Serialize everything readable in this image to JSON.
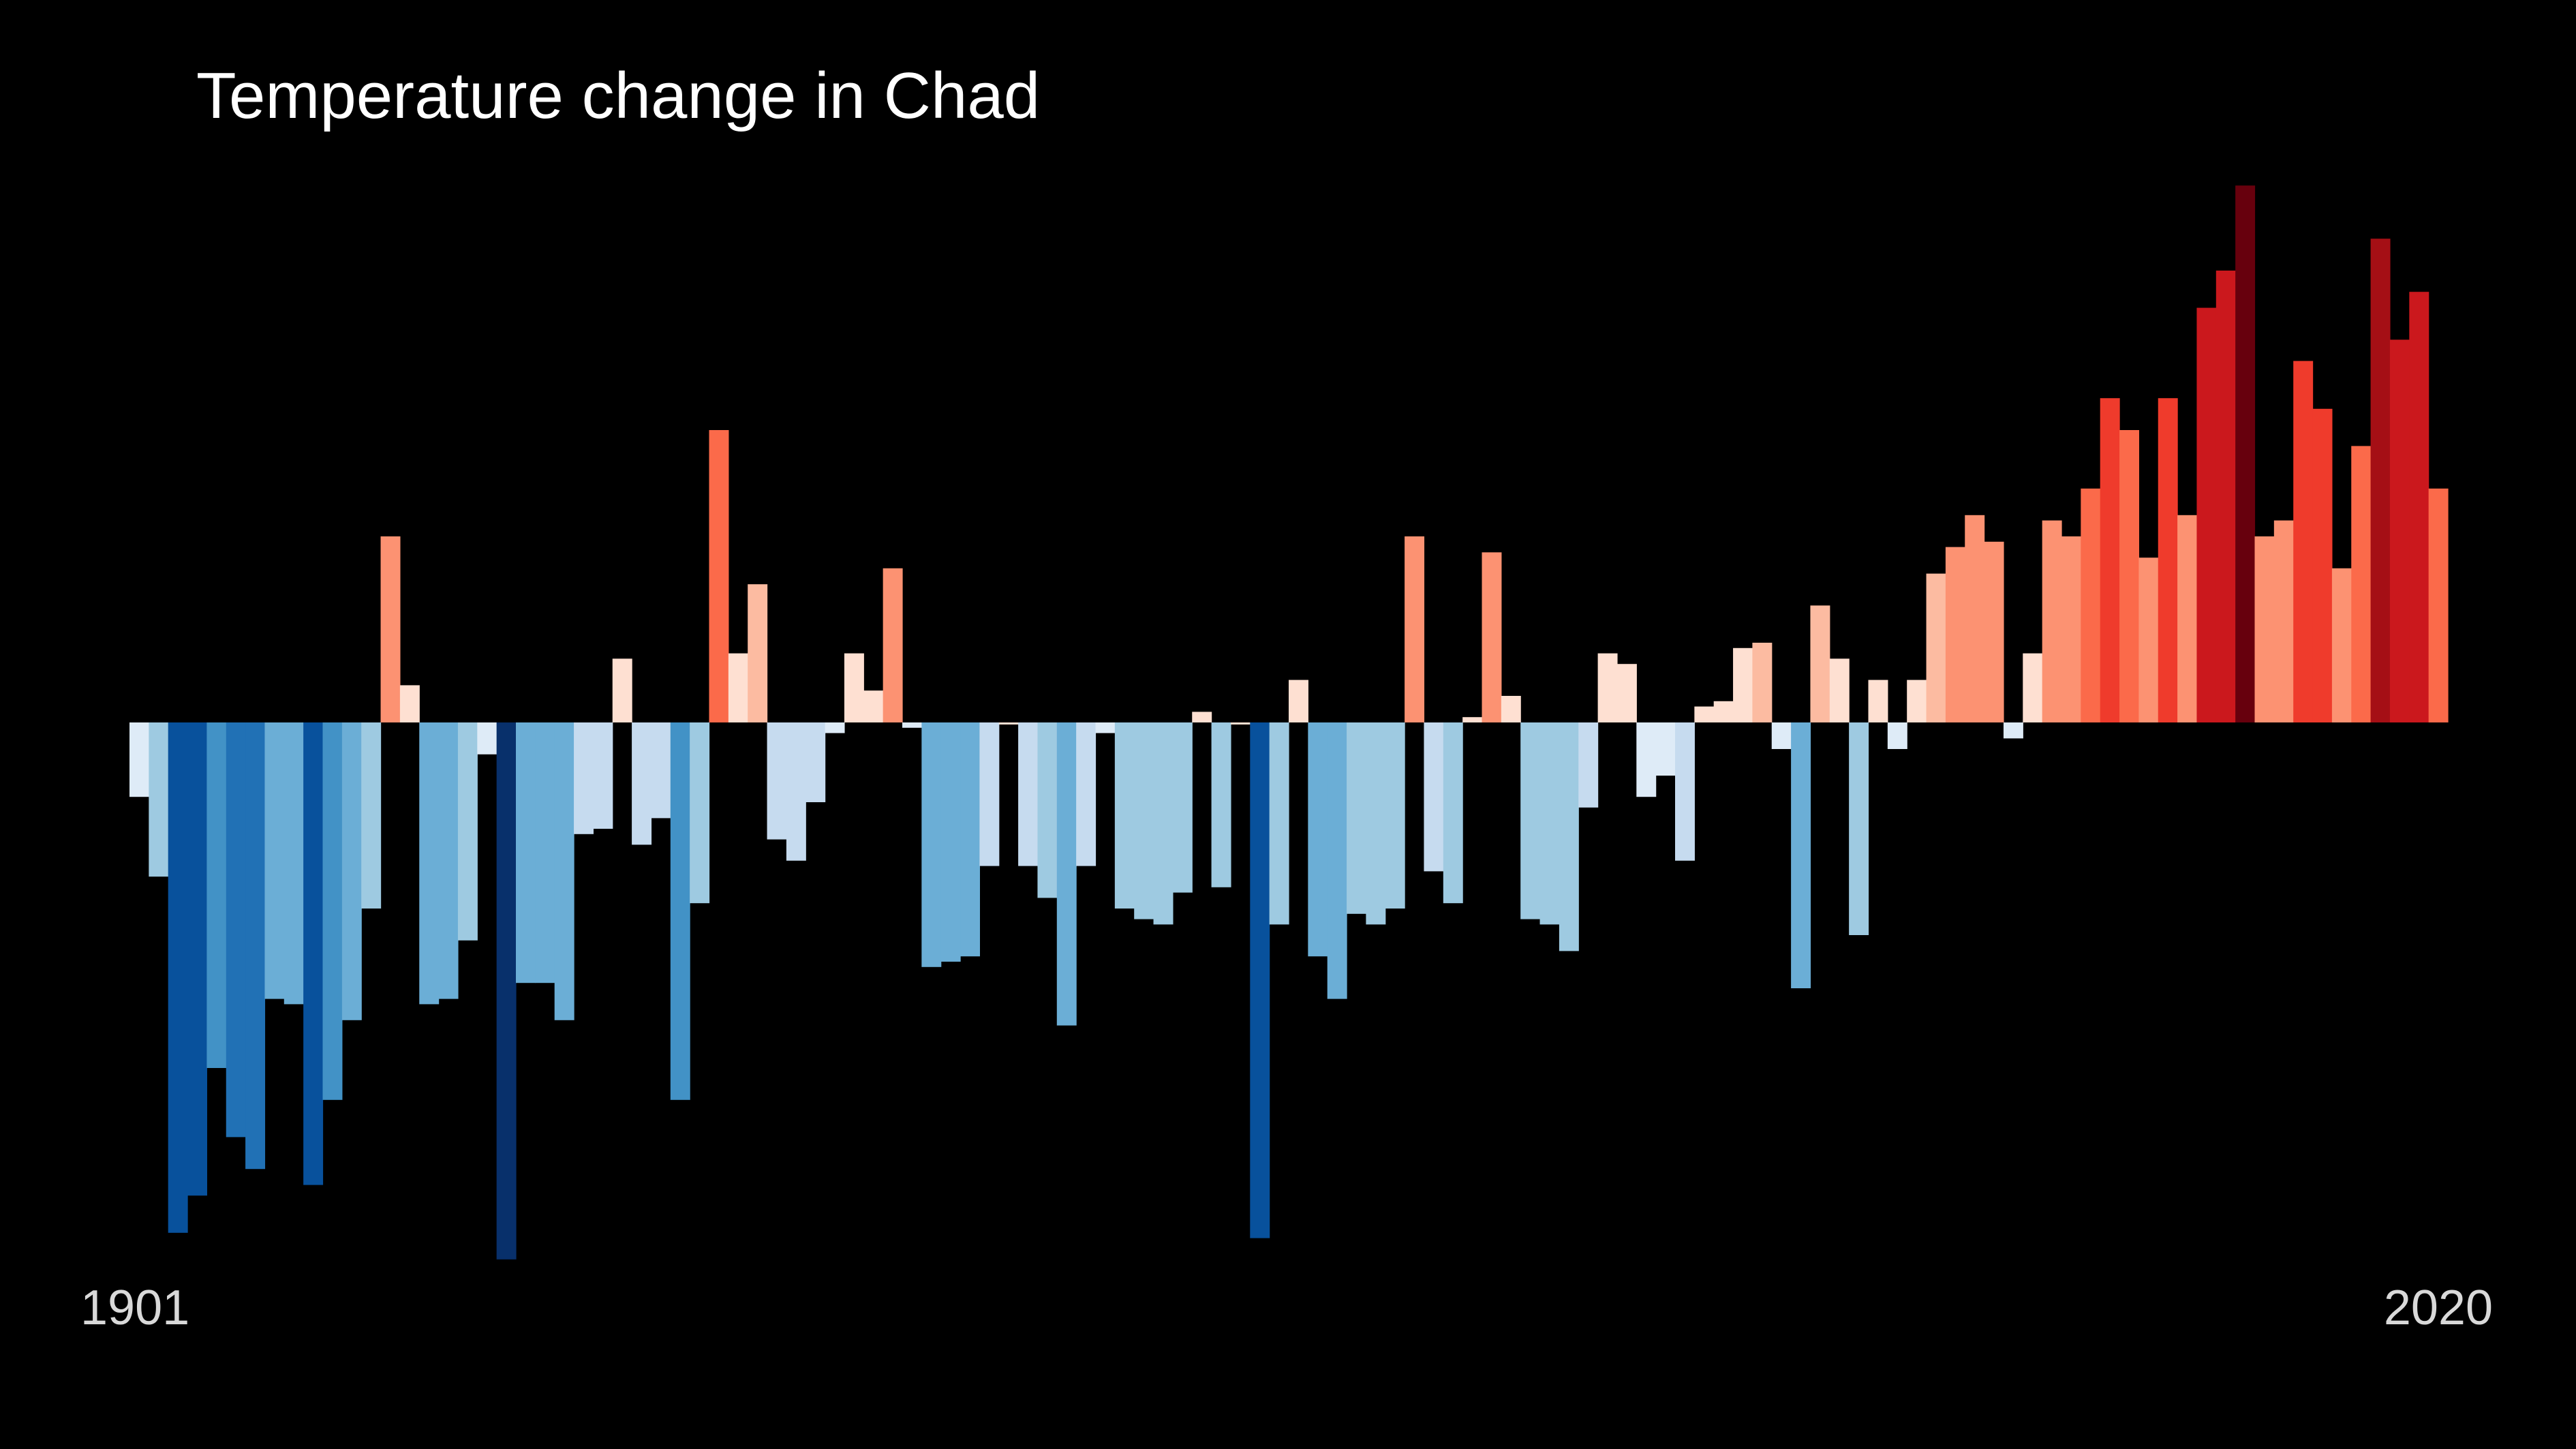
{
  "chart_data": {
    "type": "bar",
    "title": "Temperature change in Chad",
    "x_start_label": "1901",
    "x_end_label": "2020",
    "x": [
      1901,
      1902,
      1903,
      1904,
      1905,
      1906,
      1907,
      1908,
      1909,
      1910,
      1911,
      1912,
      1913,
      1914,
      1915,
      1916,
      1917,
      1918,
      1919,
      1920,
      1921,
      1922,
      1923,
      1924,
      1925,
      1926,
      1927,
      1928,
      1929,
      1930,
      1931,
      1932,
      1933,
      1934,
      1935,
      1936,
      1937,
      1938,
      1939,
      1940,
      1941,
      1942,
      1943,
      1944,
      1945,
      1946,
      1947,
      1948,
      1949,
      1950,
      1951,
      1952,
      1953,
      1954,
      1955,
      1956,
      1957,
      1958,
      1959,
      1960,
      1961,
      1962,
      1963,
      1964,
      1965,
      1966,
      1967,
      1968,
      1969,
      1970,
      1971,
      1972,
      1973,
      1974,
      1975,
      1976,
      1977,
      1978,
      1979,
      1980,
      1981,
      1982,
      1983,
      1984,
      1985,
      1986,
      1987,
      1988,
      1989,
      1990,
      1991,
      1992,
      1993,
      1994,
      1995,
      1996,
      1997,
      1998,
      1999,
      2000,
      2001,
      2002,
      2003,
      2004,
      2005,
      2006,
      2007,
      2008,
      2009,
      2010,
      2011,
      2012,
      2013,
      2014,
      2015,
      2016,
      2017,
      2018,
      2019,
      2020
    ],
    "values": [
      -0.14,
      -0.29,
      -0.96,
      -0.89,
      -0.65,
      -0.78,
      -0.84,
      -0.52,
      -0.53,
      -0.87,
      -0.71,
      -0.56,
      -0.35,
      0.35,
      0.07,
      -0.53,
      -0.52,
      -0.41,
      -0.06,
      -1.01,
      -0.49,
      -0.49,
      -0.56,
      -0.21,
      -0.2,
      0.12,
      -0.23,
      -0.18,
      -0.71,
      -0.34,
      0.55,
      0.13,
      0.26,
      -0.22,
      -0.26,
      -0.15,
      -0.02,
      0.13,
      0.06,
      0.29,
      -0.01,
      -0.46,
      -0.45,
      -0.44,
      -0.27,
      0.0,
      -0.27,
      -0.33,
      -0.57,
      -0.27,
      -0.02,
      -0.35,
      -0.37,
      -0.38,
      -0.32,
      0.02,
      -0.31,
      0.0,
      -0.97,
      -0.38,
      0.08,
      -0.44,
      -0.52,
      -0.36,
      -0.38,
      -0.35,
      0.35,
      -0.28,
      -0.34,
      0.01,
      0.32,
      0.05,
      -0.37,
      -0.38,
      -0.43,
      -0.16,
      0.13,
      0.11,
      -0.14,
      -0.1,
      -0.26,
      0.03,
      0.04,
      0.14,
      0.15,
      -0.05,
      -0.5,
      0.22,
      0.12,
      -0.4,
      0.08,
      -0.05,
      0.08,
      0.28,
      0.33,
      0.39,
      0.34,
      -0.03,
      0.13,
      0.38,
      0.35,
      0.44,
      0.61,
      0.55,
      0.31,
      0.61,
      0.39,
      0.78,
      0.85,
      1.01,
      0.35,
      0.38,
      0.68,
      0.59,
      0.29,
      0.52,
      0.91,
      0.72,
      0.81,
      0.44
    ],
    "ylim": [
      -1.15,
      1.15
    ],
    "color_scale": [
      "#08306b",
      "#08519c",
      "#2171b5",
      "#4292c6",
      "#6baed6",
      "#9ecae1",
      "#c6dbef",
      "#deebf7",
      "#fee0d2",
      "#fcbba1",
      "#fc9272",
      "#fb6a4a",
      "#ef3b2c",
      "#cb181d",
      "#a50f15",
      "#67000d"
    ],
    "background": "#000000",
    "grid": false,
    "legend": "none"
  }
}
